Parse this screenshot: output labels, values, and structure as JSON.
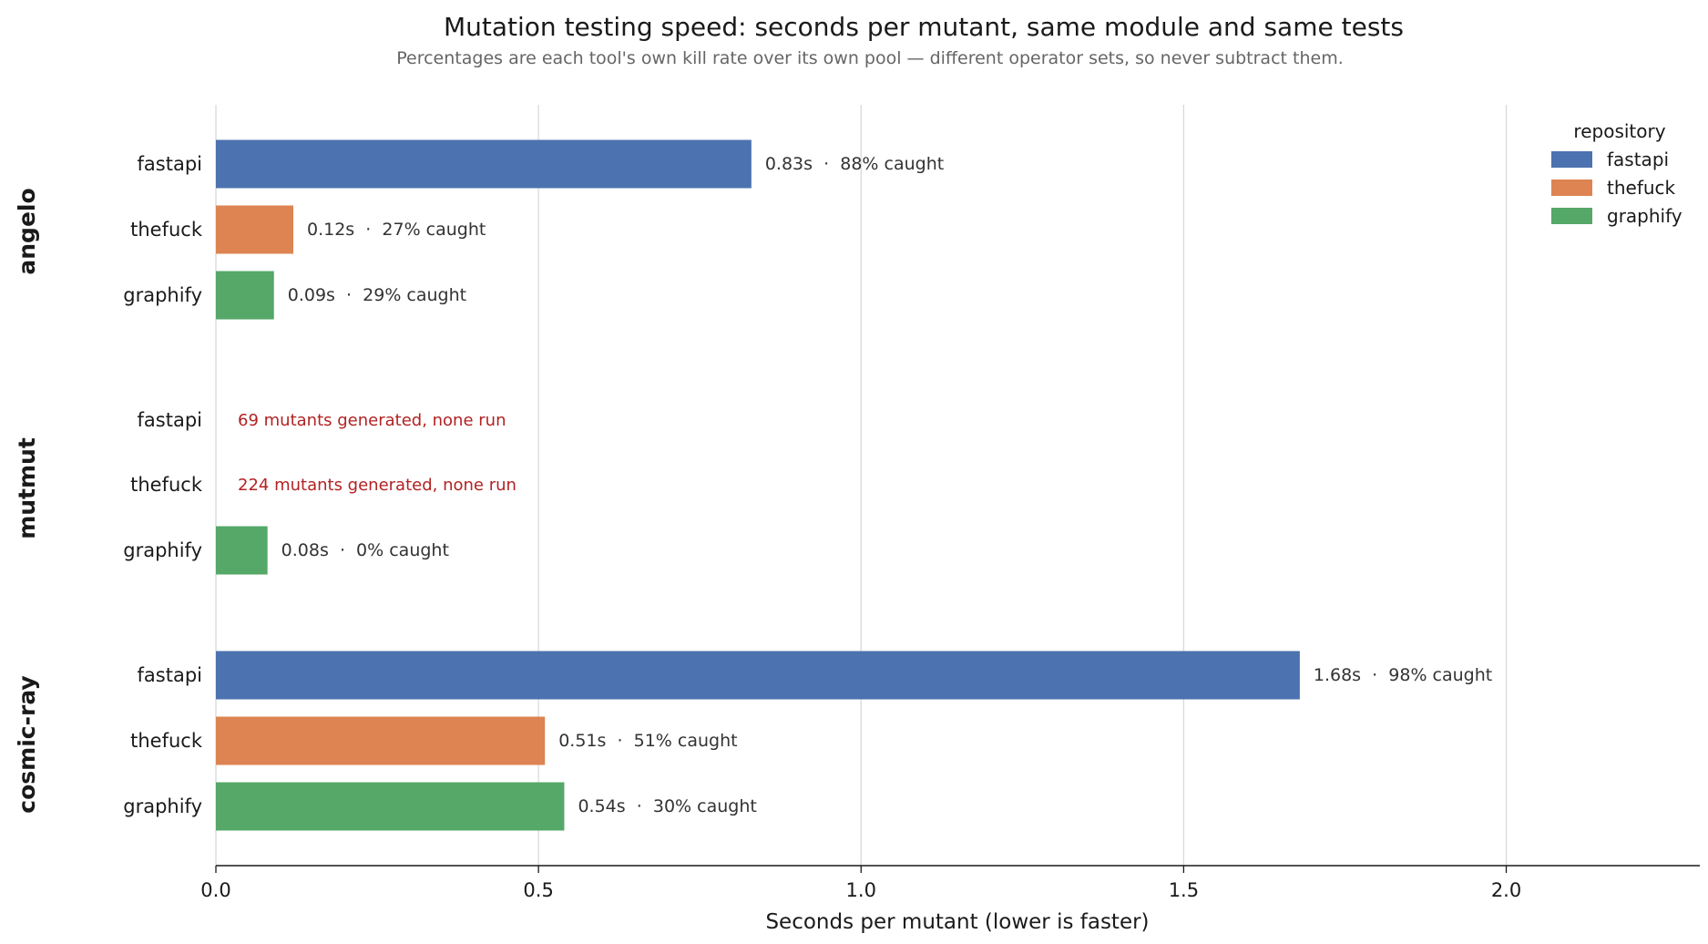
{
  "chart_data": {
    "type": "bar",
    "orientation": "horizontal",
    "title": "Mutation testing speed: seconds per mutant, same module and same tests",
    "subtitle": "Percentages are each tool's own kill rate over its own pool — different operator sets, so never subtract them.",
    "xlabel": "Seconds per mutant (lower is faster)",
    "xlim": [
      0,
      2.3
    ],
    "xticks": [
      "0.0",
      "0.5",
      "1.0",
      "1.5",
      "2.0"
    ],
    "xtick_values": [
      0,
      0.5,
      1.0,
      1.5,
      2.0
    ],
    "grid": "vertical",
    "legend": {
      "title": "repository",
      "placement": "top-right",
      "entries": [
        "fastapi",
        "thefuck",
        "graphify"
      ]
    },
    "colors": {
      "fastapi": "#4c72b0",
      "thefuck": "#dd8452",
      "graphify": "#55a868",
      "note": "#b22222"
    },
    "groups": [
      {
        "name": "angelo",
        "bars": [
          {
            "category": "fastapi",
            "value": 0.83,
            "label": "0.83s  ·  88% caught"
          },
          {
            "category": "thefuck",
            "value": 0.12,
            "label": "0.12s  ·  27% caught"
          },
          {
            "category": "graphify",
            "value": 0.09,
            "label": "0.09s  ·  29% caught"
          }
        ]
      },
      {
        "name": "mutmut",
        "bars": [
          {
            "category": "fastapi",
            "value": null,
            "label": "69 mutants generated, none run"
          },
          {
            "category": "thefuck",
            "value": null,
            "label": "224 mutants generated, none run"
          },
          {
            "category": "graphify",
            "value": 0.08,
            "label": "0.08s  ·  0% caught"
          }
        ]
      },
      {
        "name": "cosmic-ray",
        "bars": [
          {
            "category": "fastapi",
            "value": 1.68,
            "label": "1.68s  ·  98% caught"
          },
          {
            "category": "thefuck",
            "value": 0.51,
            "label": "0.51s  ·  51% caught"
          },
          {
            "category": "graphify",
            "value": 0.54,
            "label": "0.54s  ·  30% caught"
          }
        ]
      }
    ]
  }
}
